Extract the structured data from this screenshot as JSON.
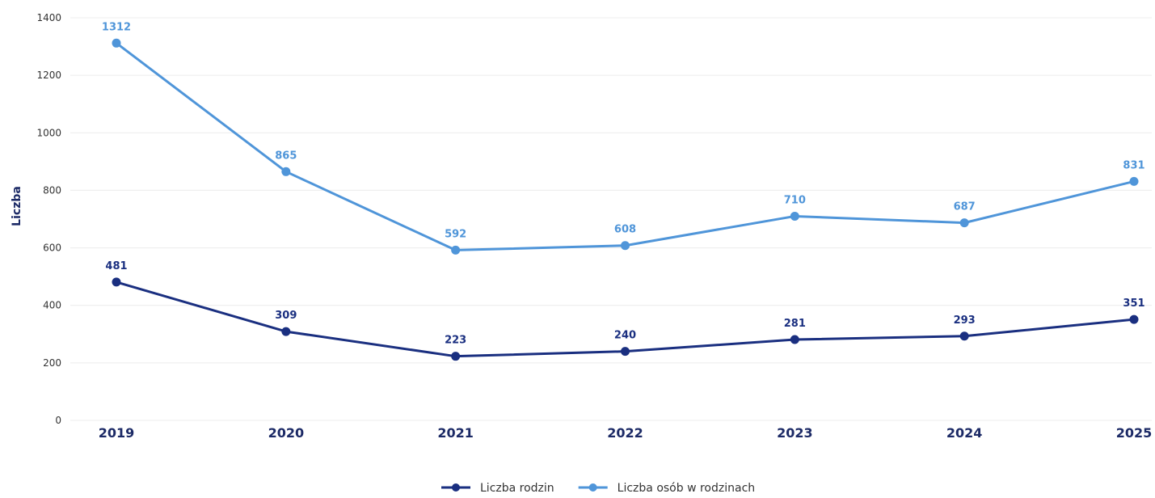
{
  "chart_data": {
    "type": "line",
    "title": "",
    "xlabel": "",
    "ylabel": "Liczba",
    "categories": [
      "2019",
      "2020",
      "2021",
      "2022",
      "2023",
      "2024",
      "2025"
    ],
    "ylim": [
      0,
      1400
    ],
    "yticks": [
      0,
      200,
      400,
      600,
      800,
      1000,
      1200,
      1400
    ],
    "grid": true,
    "legend_position": "bottom-center",
    "series": [
      {
        "name": "Liczba rodzin",
        "color": "#1a2f80",
        "values": [
          481,
          309,
          223,
          240,
          281,
          293,
          351
        ]
      },
      {
        "name": "Liczba osób w rodzinach",
        "color": "#4f95d9",
        "values": [
          1312,
          865,
          592,
          608,
          710,
          687,
          831
        ]
      }
    ]
  }
}
